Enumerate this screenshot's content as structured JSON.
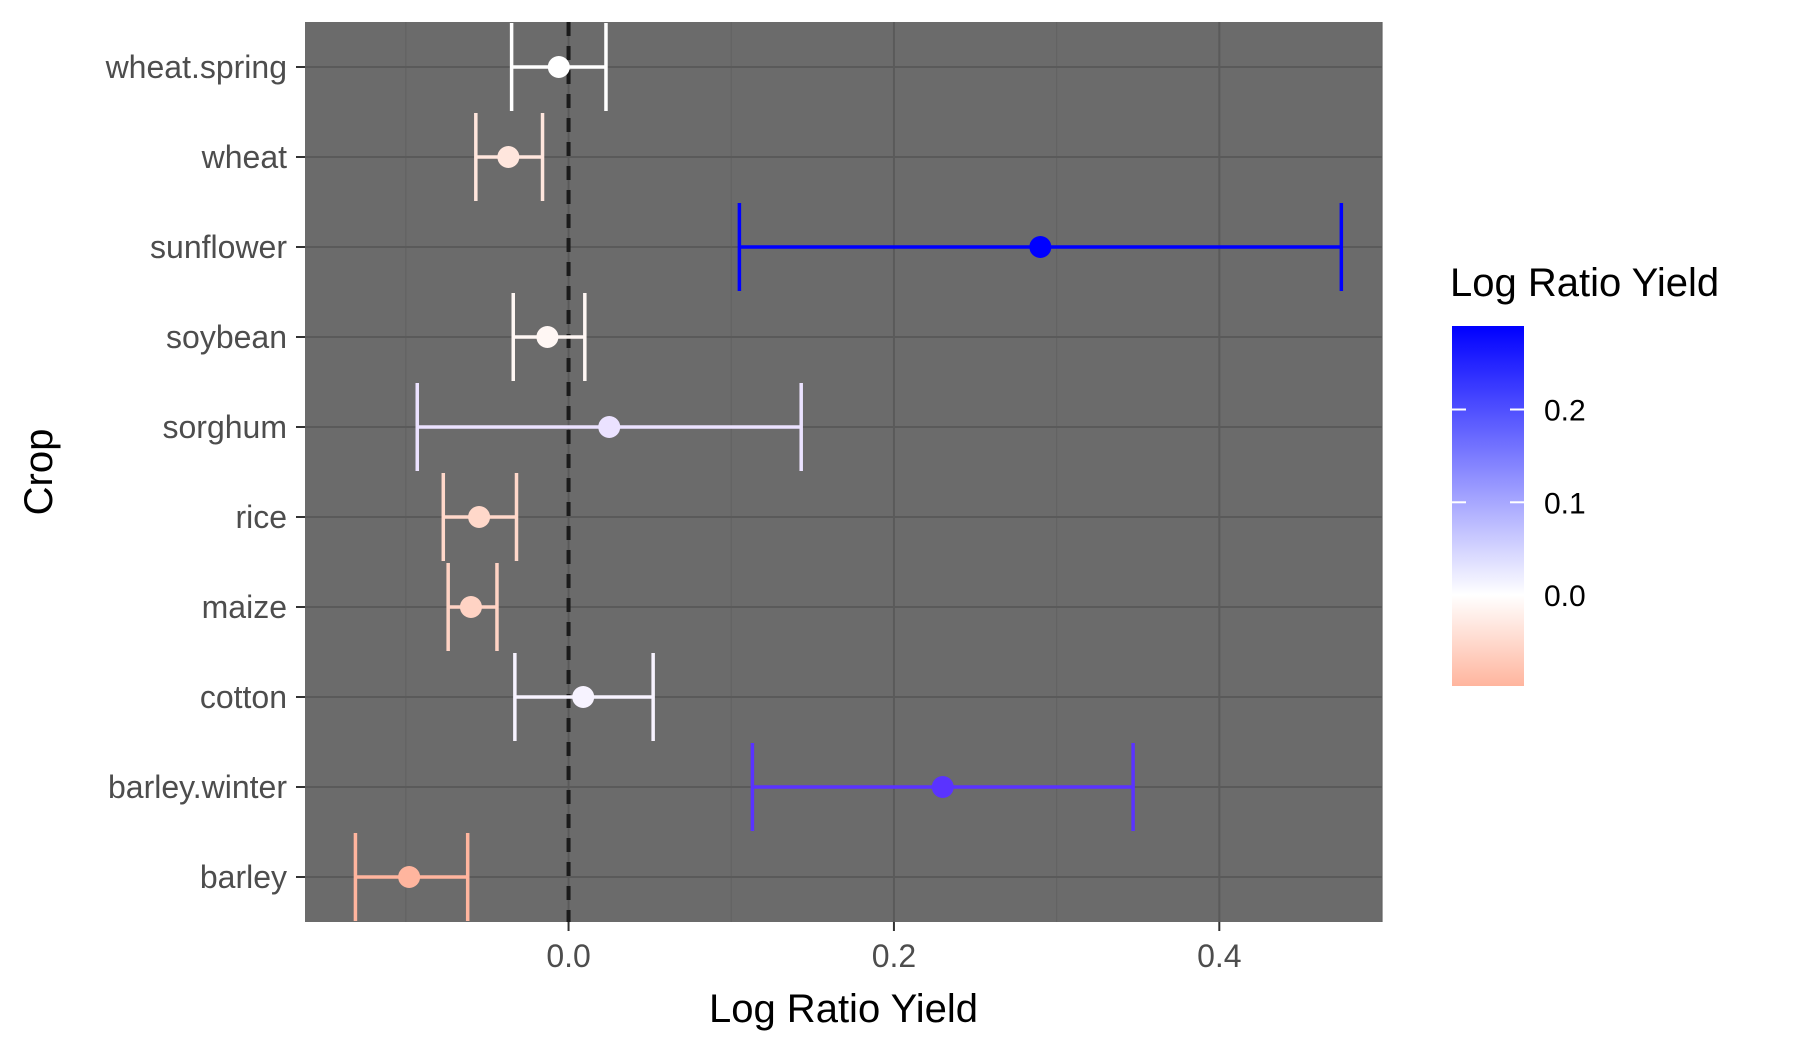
{
  "chart_data": {
    "type": "scatter",
    "title": "",
    "xlabel": "Log Ratio Yield",
    "ylabel": "Crop",
    "xlim": [
      -0.162,
      0.5
    ],
    "x_ticks": [
      0.0,
      0.2,
      0.4
    ],
    "x_tick_labels": [
      "0.0",
      "0.2",
      "0.4"
    ],
    "grid": true,
    "panel_background": "#6b6b6b",
    "reference_line": {
      "x": 0.0,
      "style": "dashed",
      "color": "#1a1a1a"
    },
    "categories": [
      "wheat.spring",
      "wheat",
      "sunflower",
      "soybean",
      "sorghum",
      "rice",
      "maize",
      "cotton",
      "barley.winter",
      "barley"
    ],
    "points": [
      {
        "category": "wheat.spring",
        "value": -0.006,
        "lower": -0.035,
        "upper": 0.023,
        "color": "#ffffff"
      },
      {
        "category": "wheat",
        "value": -0.037,
        "lower": -0.057,
        "upper": -0.016,
        "color": "#ffe6dd"
      },
      {
        "category": "sunflower",
        "value": 0.29,
        "lower": 0.105,
        "upper": 0.475,
        "color": "#0000ff"
      },
      {
        "category": "soybean",
        "value": -0.013,
        "lower": -0.034,
        "upper": 0.01,
        "color": "#fff7f4"
      },
      {
        "category": "sorghum",
        "value": 0.025,
        "lower": -0.093,
        "upper": 0.143,
        "color": "#ebe2ff"
      },
      {
        "category": "rice",
        "value": -0.055,
        "lower": -0.077,
        "upper": -0.032,
        "color": "#ffd8ca"
      },
      {
        "category": "maize",
        "value": -0.06,
        "lower": -0.074,
        "upper": -0.044,
        "color": "#ffd3c4"
      },
      {
        "category": "cotton",
        "value": 0.009,
        "lower": -0.033,
        "upper": 0.052,
        "color": "#f7f3ff"
      },
      {
        "category": "barley.winter",
        "value": 0.23,
        "lower": 0.113,
        "upper": 0.347,
        "color": "#5a33ff"
      },
      {
        "category": "barley",
        "value": -0.098,
        "lower": -0.131,
        "upper": -0.062,
        "color": "#ffb59e"
      }
    ],
    "legend": {
      "title": "Log Ratio Yield",
      "position": "right",
      "type": "colorbar",
      "range": [
        -0.098,
        0.29
      ],
      "breaks": [
        0.0,
        0.1,
        0.2
      ],
      "break_labels": [
        "0.0",
        "0.1",
        "0.2"
      ],
      "low_color": "#ffb59e",
      "mid_color": "#ffffff",
      "high_color": "#0000ff"
    }
  }
}
